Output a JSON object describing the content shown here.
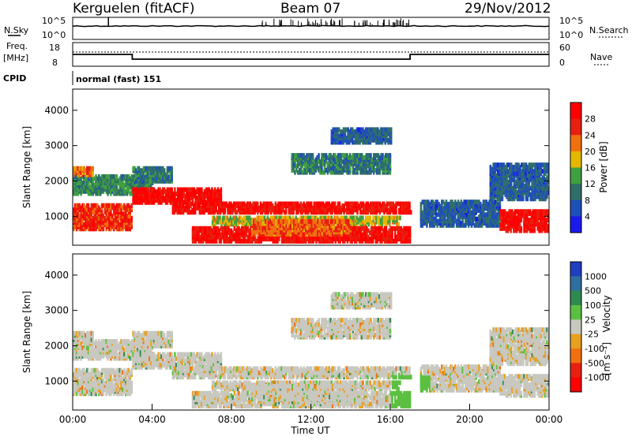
{
  "header": {
    "station": "Kerguelen (fitACF)",
    "beam": "Beam 07",
    "date": "29/Nov/2012"
  },
  "top_panel": {
    "nsky_label": "N.Sky",
    "nsearch_label": "N.Search",
    "freq_label": "Freq.",
    "freq_unit": "[MHz]",
    "nave_label": "Nave",
    "cpid_label": "CPID",
    "cpid_value": "normal (fast) 151"
  },
  "xaxis": {
    "label": "Time UT"
  },
  "chart_data": [
    {
      "type": "line",
      "name": "noise",
      "y_ticks_left": [
        "10^5",
        "10^0"
      ],
      "y_ticks_right": [
        "10^5",
        "10^0"
      ]
    },
    {
      "type": "line",
      "name": "frequency-nave",
      "y_ticks_left": [
        "18",
        "8"
      ],
      "y_ticks_right": [
        "60",
        "0"
      ],
      "freq": {
        "x": [
          0,
          3,
          3,
          17,
          17,
          24
        ],
        "y": [
          13,
          13,
          11,
          11,
          13,
          13
        ]
      }
    },
    {
      "type": "heatmap",
      "ylabel": "Slant Range [km]",
      "y_ticks": [
        "1000",
        "2000",
        "3000",
        "4000"
      ],
      "xlim": [
        0,
        24
      ],
      "ylim": [
        180,
        4600
      ],
      "colorbar": {
        "label": "Power [dB]",
        "ticks": [
          "4",
          "8",
          "12",
          "16",
          "20",
          "24",
          "28"
        ],
        "colors": [
          "#1a1aee",
          "#1f4fb8",
          "#2f6f6a",
          "#3fa040",
          "#e4b800",
          "#f07010",
          "#e82010",
          "#ff0000"
        ]
      }
    },
    {
      "type": "heatmap",
      "ylabel": "Slant Range [km]",
      "y_ticks": [
        "1000",
        "2000",
        "3000",
        "4000"
      ],
      "xlim": [
        0,
        24
      ],
      "ylim": [
        180,
        4600
      ],
      "x_ticks": [
        "00:00",
        "04:00",
        "08:00",
        "12:00",
        "16:00",
        "20:00",
        "00:00"
      ],
      "colorbar": {
        "label": "Velocity",
        "unit": "[m s⁻¹]",
        "ticks": [
          "1000",
          "500",
          "100",
          "25",
          "-25",
          "-100",
          "-500",
          "-1000"
        ],
        "colors": [
          "#1f3fc0",
          "#2f6fa0",
          "#2f8a50",
          "#5bc040",
          "#c8c8c0",
          "#e8a020",
          "#f07010",
          "#e82010",
          "#ff0000"
        ]
      }
    }
  ]
}
